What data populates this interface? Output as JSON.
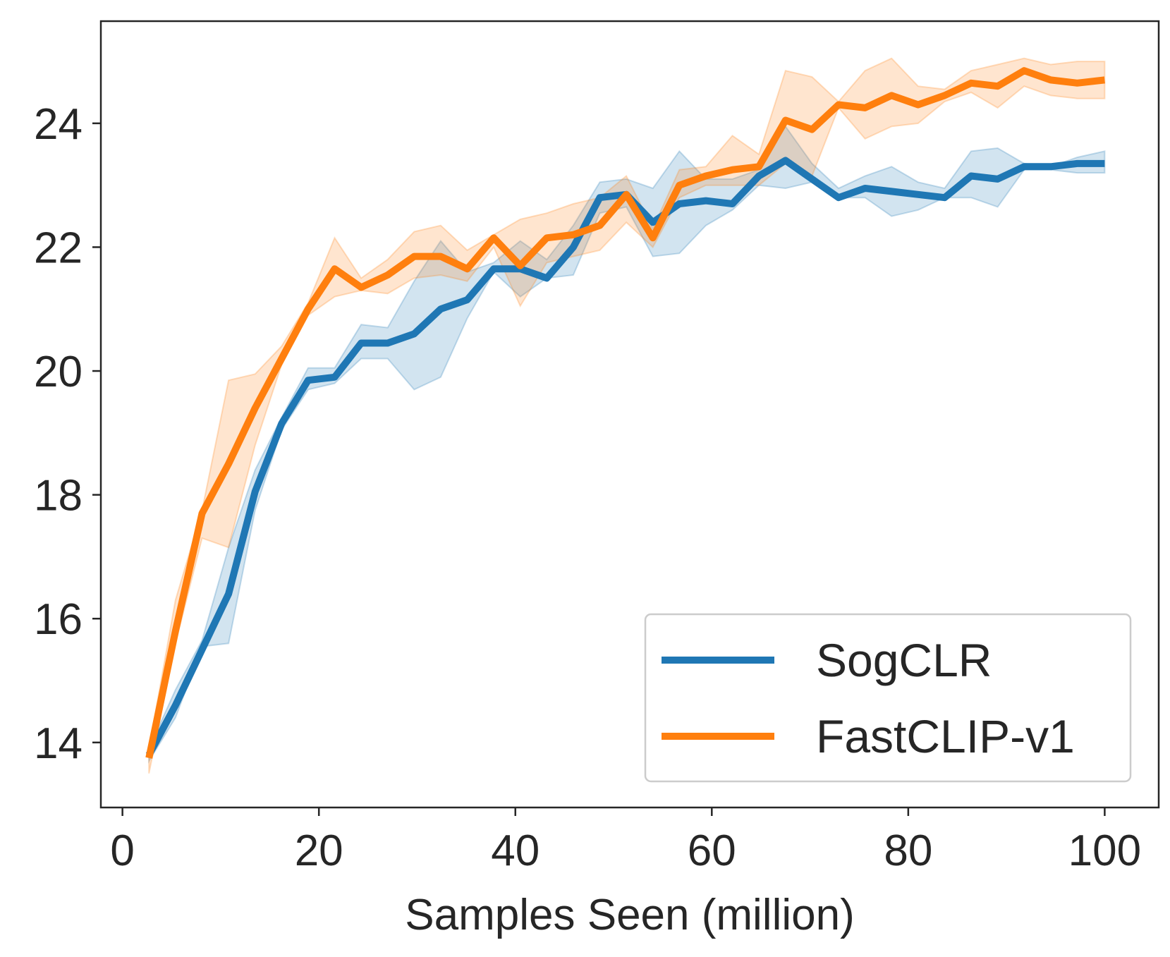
{
  "chart_data": {
    "type": "line",
    "title": "",
    "xlabel": "Samples Seen (million)",
    "ylabel": "",
    "xlim": [
      -2.2,
      105.5
    ],
    "ylim": [
      12.95,
      25.65
    ],
    "xticks": [
      0,
      20,
      40,
      60,
      80,
      100
    ],
    "yticks": [
      14,
      16,
      18,
      20,
      22,
      24
    ],
    "xtick_labels": [
      "0",
      "20",
      "40",
      "60",
      "80",
      "100"
    ],
    "ytick_labels": [
      "14",
      "16",
      "18",
      "20",
      "22",
      "24"
    ],
    "grid": false,
    "legend_position": "lower-right",
    "x": [
      2.7,
      5.4,
      8.1,
      10.8,
      13.5,
      16.2,
      18.9,
      21.6,
      24.3,
      27.0,
      29.7,
      32.4,
      35.1,
      37.8,
      40.5,
      43.2,
      45.9,
      48.6,
      51.3,
      54.0,
      56.7,
      59.4,
      62.1,
      64.8,
      67.5,
      70.2,
      72.9,
      75.6,
      78.3,
      81.0,
      83.7,
      86.4,
      89.1,
      91.8,
      94.5,
      97.2,
      100.0
    ],
    "series": [
      {
        "name": "SogCLR",
        "color": "#1f77b4",
        "values": [
          13.8,
          14.6,
          15.5,
          16.4,
          18.05,
          19.15,
          19.85,
          19.9,
          20.45,
          20.45,
          20.6,
          21.0,
          21.15,
          21.65,
          21.65,
          21.5,
          22.0,
          22.8,
          22.85,
          22.4,
          22.7,
          22.75,
          22.7,
          23.15,
          23.4,
          23.1,
          22.8,
          22.95,
          22.9,
          22.85,
          22.8,
          23.15,
          23.1,
          23.3,
          23.3,
          23.35,
          23.35
        ],
        "upper": [
          13.9,
          14.85,
          15.65,
          17.15,
          18.4,
          19.25,
          20.05,
          20.05,
          20.75,
          20.7,
          21.45,
          22.1,
          21.6,
          21.75,
          22.1,
          21.8,
          22.35,
          23.05,
          23.1,
          22.95,
          23.55,
          23.1,
          23.1,
          23.25,
          23.95,
          23.35,
          22.95,
          23.15,
          23.3,
          23.05,
          22.95,
          23.55,
          23.6,
          23.35,
          23.3,
          23.45,
          23.55
        ],
        "lower": [
          13.7,
          14.4,
          15.55,
          15.6,
          17.75,
          19.05,
          19.7,
          19.8,
          20.2,
          20.2,
          19.7,
          19.9,
          20.85,
          21.6,
          21.2,
          21.5,
          21.55,
          22.55,
          22.65,
          21.85,
          21.9,
          22.35,
          22.6,
          23.0,
          22.95,
          23.05,
          22.8,
          22.8,
          22.5,
          22.6,
          22.8,
          22.8,
          22.65,
          23.25,
          23.25,
          23.2,
          23.2
        ]
      },
      {
        "name": "FastCLIP-v1",
        "color": "#ff7f0e",
        "values": [
          13.75,
          15.8,
          17.7,
          18.5,
          19.4,
          20.2,
          21.0,
          21.65,
          21.35,
          21.55,
          21.85,
          21.85,
          21.65,
          22.15,
          21.7,
          22.15,
          22.2,
          22.35,
          22.85,
          22.15,
          23.0,
          23.15,
          23.25,
          23.3,
          24.05,
          23.9,
          24.3,
          24.25,
          24.45,
          24.3,
          24.45,
          24.65,
          24.6,
          24.85,
          24.7,
          24.65,
          24.7
        ],
        "upper": [
          13.9,
          16.3,
          17.75,
          19.85,
          19.95,
          20.4,
          21.1,
          22.15,
          21.5,
          21.8,
          22.25,
          22.35,
          21.95,
          22.2,
          22.45,
          22.55,
          22.7,
          22.8,
          23.15,
          22.3,
          23.25,
          23.3,
          23.8,
          23.5,
          24.85,
          24.75,
          24.35,
          24.85,
          25.05,
          24.6,
          24.55,
          24.85,
          24.95,
          25.05,
          24.95,
          25.0,
          25.0
        ],
        "lower": [
          13.5,
          15.6,
          17.3,
          17.15,
          18.8,
          20.1,
          20.9,
          21.2,
          21.3,
          21.25,
          21.5,
          21.55,
          21.45,
          22.0,
          21.05,
          21.75,
          21.85,
          21.95,
          22.4,
          22.0,
          22.8,
          23.0,
          23.0,
          23.0,
          23.35,
          23.15,
          24.25,
          23.75,
          23.95,
          24.0,
          24.35,
          24.5,
          24.25,
          24.6,
          24.45,
          24.4,
          24.4
        ]
      }
    ]
  }
}
